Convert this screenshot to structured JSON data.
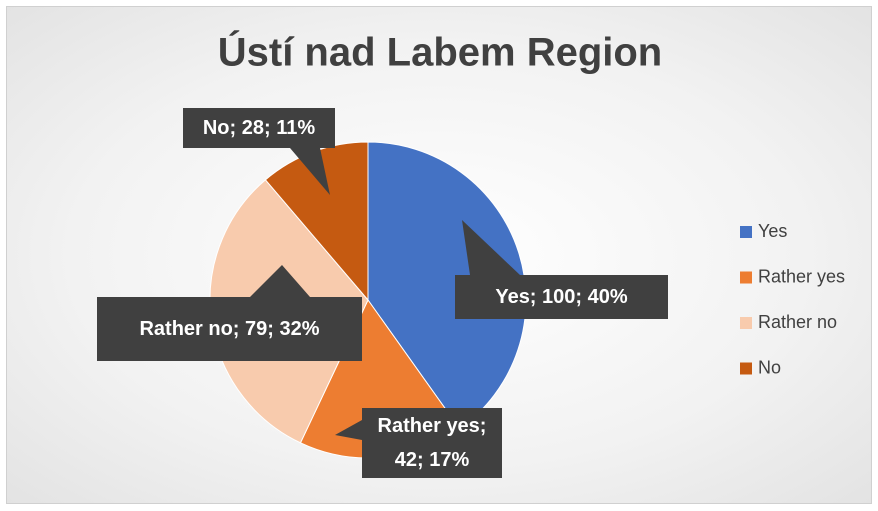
{
  "chart_data": {
    "type": "pie",
    "title": "Ústí nad Labem Region",
    "categories": [
      "Yes",
      "Rather yes",
      "Rather no",
      "No"
    ],
    "values": [
      100,
      42,
      79,
      28
    ],
    "value_labels": [
      "Yes; 100; 40%",
      "Rather yes; 42; 17%",
      "Rather no; 79; 32%",
      "No; 28; 11%"
    ],
    "colors": [
      "#4472c4",
      "#ed7d31",
      "#f8cbad",
      "#c55a11"
    ],
    "legend": "right"
  }
}
